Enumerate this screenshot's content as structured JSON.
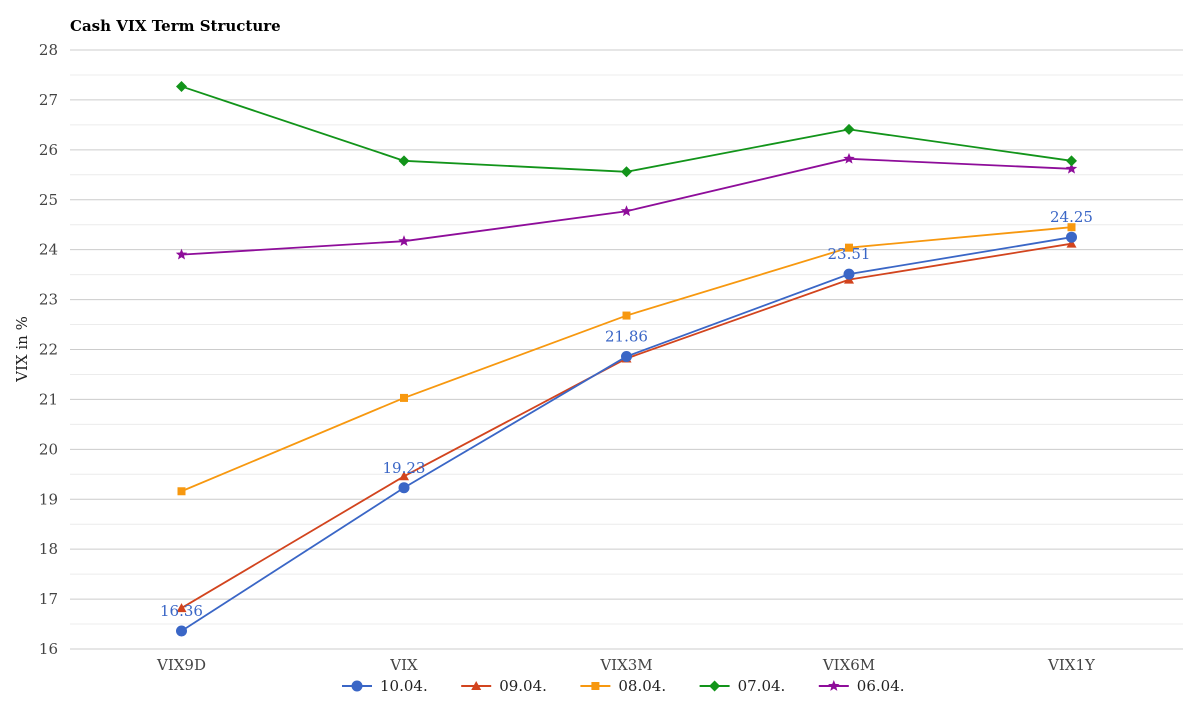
{
  "chart_data": {
    "type": "line",
    "title": "Cash VIX Term Structure",
    "xlabel": "",
    "ylabel": "VIX in %",
    "categories": [
      "VIX9D",
      "VIX",
      "VIX3M",
      "VIX6M",
      "VIX1Y"
    ],
    "ylim": [
      16,
      28
    ],
    "yticks": [
      16,
      17,
      18,
      19,
      20,
      21,
      22,
      23,
      24,
      25,
      26,
      27,
      28
    ],
    "grid": true,
    "legend_position": "bottom",
    "series": [
      {
        "name": "10.04.",
        "color": "#3a66c6",
        "marker": "circle",
        "values": [
          16.36,
          19.23,
          21.86,
          23.51,
          24.25
        ],
        "data_labels": [
          "16.36",
          "19.23",
          "21.86",
          "23.51",
          "24.25"
        ]
      },
      {
        "name": "09.04.",
        "color": "#d2441e",
        "marker": "triangle",
        "values": [
          16.82,
          19.46,
          21.82,
          23.4,
          24.12
        ]
      },
      {
        "name": "08.04.",
        "color": "#f7980f",
        "marker": "square",
        "values": [
          19.16,
          21.03,
          22.68,
          24.04,
          24.45
        ]
      },
      {
        "name": "07.04.",
        "color": "#12941a",
        "marker": "diamond",
        "values": [
          27.27,
          25.78,
          25.56,
          26.41,
          25.78
        ]
      },
      {
        "name": "06.04.",
        "color": "#8e0d9a",
        "marker": "star",
        "values": [
          23.9,
          24.17,
          24.77,
          25.82,
          25.62
        ]
      }
    ]
  }
}
